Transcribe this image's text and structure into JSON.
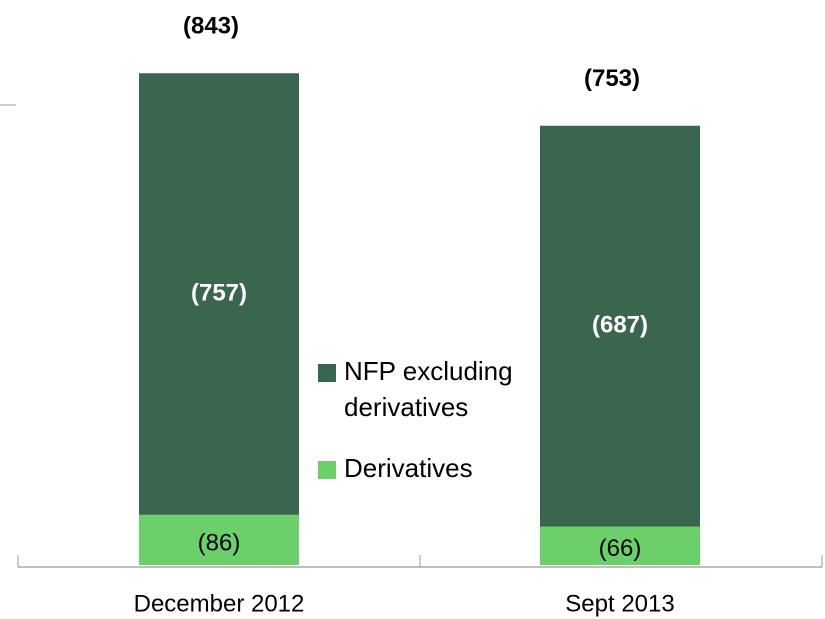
{
  "chart_data": {
    "type": "stacked_bar",
    "categories": [
      "December 2012",
      "Sept 2013"
    ],
    "series": [
      {
        "name": "Derivatives",
        "color": "#6bcf6a",
        "values": [
          -86,
          -66
        ],
        "value_labels": [
          "(86)",
          "(66)"
        ]
      },
      {
        "name": "NFP excluding derivatives",
        "color": "#3a6650",
        "values": [
          -757,
          -687
        ],
        "value_labels": [
          "(757)",
          "(687)"
        ]
      }
    ],
    "totals": [
      -843,
      -753
    ],
    "total_labels": [
      "(843)",
      "(753)"
    ],
    "ylim": [
      0,
      -900
    ]
  }
}
